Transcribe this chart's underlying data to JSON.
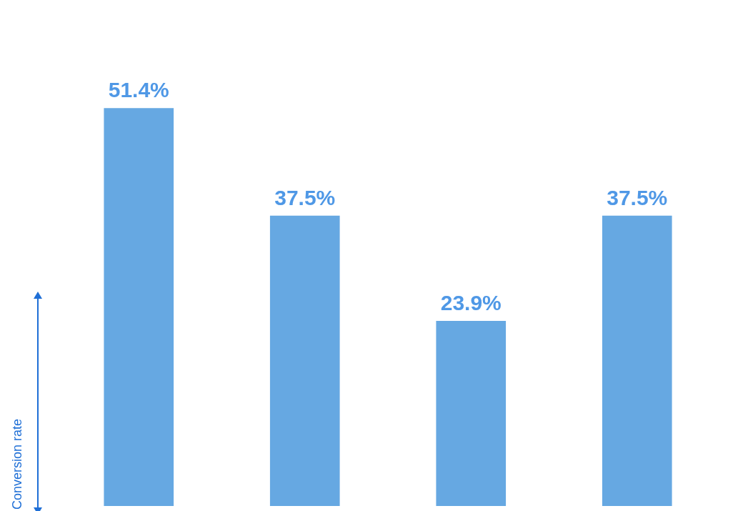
{
  "chart_data": {
    "type": "bar",
    "ylabel": "Conversion rate",
    "categories": [
      null,
      null,
      null,
      null
    ],
    "series": [
      {
        "color": "#66a8e2",
        "values": [
          51.4,
          37.5,
          23.9,
          37.5
        ],
        "value_labels": [
          "51.4%",
          "37.5%",
          "23.9%",
          "37.5%"
        ]
      }
    ],
    "legend": false
  }
}
